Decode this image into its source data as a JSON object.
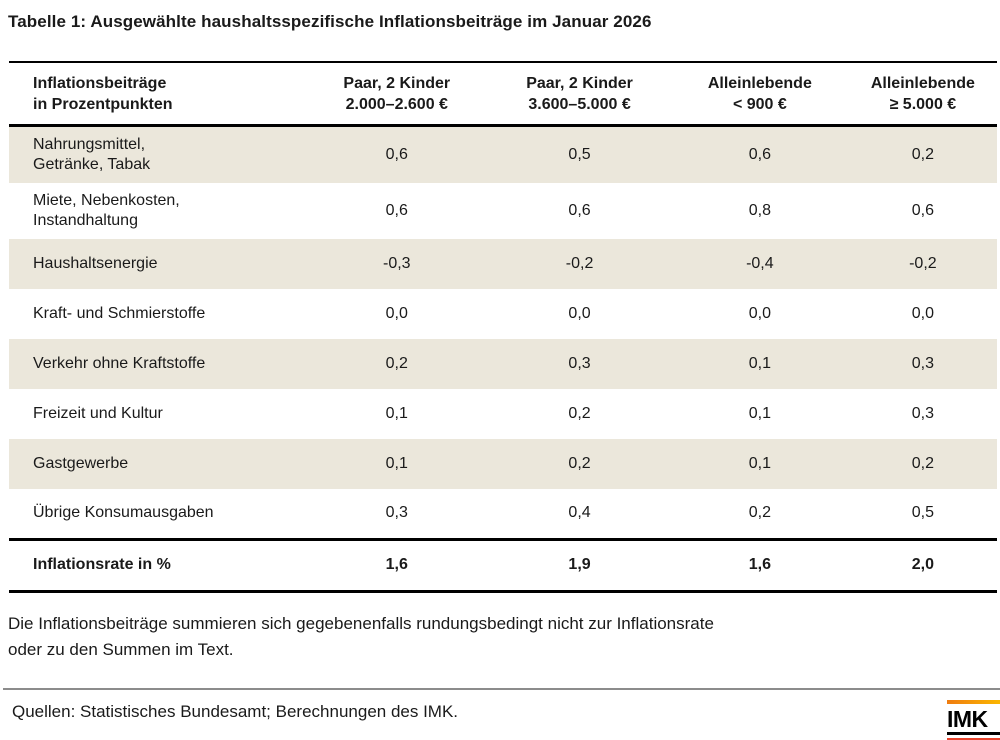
{
  "title": "Tabelle 1: Ausgewählte haushaltsspezifische Inflationsbeiträge im Januar 2026",
  "table": {
    "header": {
      "label": "Inflationsbeiträge\nin Prozentpunkten",
      "columns": [
        "Paar, 2 Kinder\n2.000–2.600 €",
        "Paar, 2 Kinder\n3.600–5.000 €",
        "Alleinlebende\n< 900 €",
        "Alleinlebende\n≥ 5.000 €"
      ]
    },
    "rows": [
      {
        "label": "Nahrungsmittel,\nGetränke, Tabak",
        "values": [
          "0,6",
          "0,5",
          "0,6",
          "0,2"
        ]
      },
      {
        "label": "Miete, Nebenkosten,\nInstandhaltung",
        "values": [
          "0,6",
          "0,6",
          "0,8",
          "0,6"
        ]
      },
      {
        "label": "Haushaltsenergie",
        "values": [
          "-0,3",
          "-0,2",
          "-0,4",
          "-0,2"
        ]
      },
      {
        "label": "Kraft- und Schmierstoffe",
        "values": [
          "0,0",
          "0,0",
          "0,0",
          "0,0"
        ]
      },
      {
        "label": "Verkehr ohne Kraftstoffe",
        "values": [
          "0,2",
          "0,3",
          "0,1",
          "0,3"
        ]
      },
      {
        "label": "Freizeit und Kultur",
        "values": [
          "0,1",
          "0,2",
          "0,1",
          "0,3"
        ]
      },
      {
        "label": "Gastgewerbe",
        "values": [
          "0,1",
          "0,2",
          "0,1",
          "0,2"
        ]
      },
      {
        "label": "Übrige Konsumausgaben",
        "values": [
          "0,3",
          "0,4",
          "0,2",
          "0,5"
        ]
      }
    ],
    "total": {
      "label": "Inflationsrate in %",
      "values": [
        "1,6",
        "1,9",
        "1,6",
        "2,0"
      ]
    }
  },
  "footnote": "Die Inflationsbeiträge summieren sich gegebenenfalls rundungsbedingt nicht zur Inflationsrate\noder zu den Summen im Text.",
  "footer": {
    "sources": "Quellen: Statistisches Bundesamt; Berechnungen des IMK.",
    "logo_text": "IMK"
  },
  "colors": {
    "row_shaded": "#ebe7db",
    "rule_black": "#000000",
    "rule_gray": "#8c8c8c",
    "logo_orange": "#f29400",
    "logo_red": "#e8432d"
  }
}
